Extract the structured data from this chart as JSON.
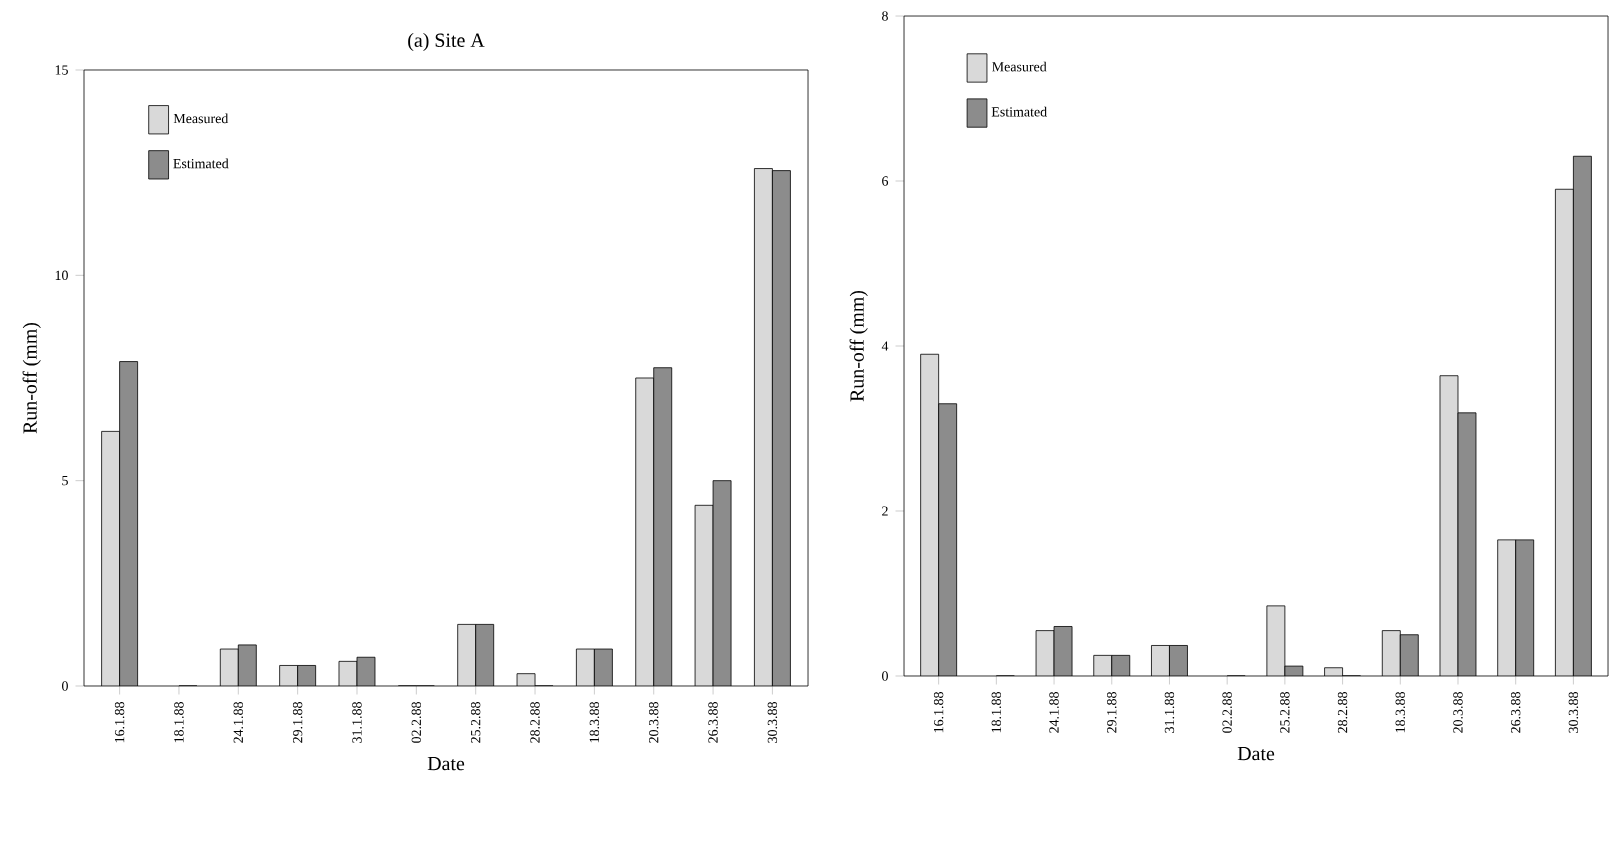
{
  "chart_data": [
    {
      "type": "bar",
      "title": "(a) Site A",
      "xlabel": "Date",
      "ylabel": "Run-off (mm)",
      "categories": [
        "16.1.88",
        "18.1.88",
        "24.1.88",
        "29.1.88",
        "31.1.88",
        "02.2.88",
        "25.2.88",
        "28.2.88",
        "18.3.88",
        "20.3.88",
        "26.3.88",
        "30.3.88"
      ],
      "series": [
        {
          "name": "Measured",
          "color": "#d9d9d9",
          "values": [
            6.2,
            null,
            0.9,
            0.5,
            0.6,
            0,
            1.5,
            0.3,
            0.9,
            7.5,
            4.4,
            12.6
          ]
        },
        {
          "name": "Estimated",
          "color": "#8c8c8c",
          "values": [
            7.9,
            0,
            1.0,
            0.5,
            0.7,
            0,
            1.5,
            0,
            0.9,
            7.75,
            5.0,
            12.55
          ]
        }
      ],
      "ylim": [
        0,
        15
      ],
      "yticks": [
        0,
        5,
        10,
        15
      ],
      "legend": "top left",
      "grid": false
    },
    {
      "type": "bar",
      "xlabel": "Date",
      "ylabel": "Run-off (mm)",
      "categories": [
        "16.1.88",
        "18.1.88",
        "24.1.88",
        "29.1.88",
        "31.1.88",
        "02.2.88",
        "25.2.88",
        "28.2.88",
        "18.3.88",
        "20.3.88",
        "26.3.88",
        "30.3.88"
      ],
      "series": [
        {
          "name": "Measured",
          "color": "#d9d9d9",
          "values": [
            3.9,
            null,
            0.55,
            0.25,
            0.37,
            null,
            0.85,
            0.1,
            0.55,
            3.64,
            1.65,
            5.9
          ]
        },
        {
          "name": "Estimated",
          "color": "#8c8c8c",
          "values": [
            3.3,
            0,
            0.6,
            0.25,
            0.37,
            0,
            0.12,
            0,
            0.5,
            3.19,
            1.65,
            6.3
          ]
        }
      ],
      "ylim": [
        0,
        8
      ],
      "yticks": [
        0,
        2,
        4,
        6,
        8
      ],
      "legend": "top left",
      "grid": false
    }
  ]
}
